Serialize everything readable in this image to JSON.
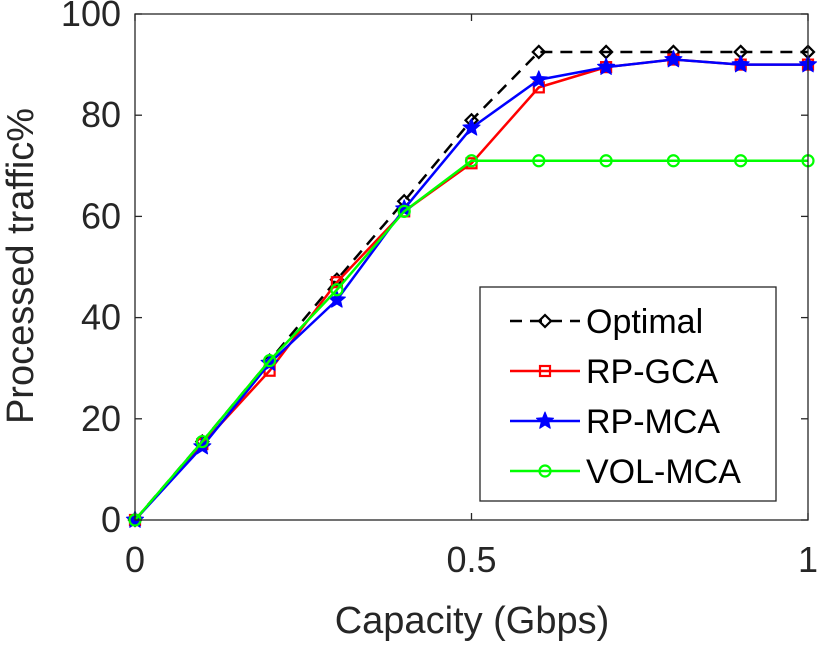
{
  "chart_data": {
    "type": "line",
    "title": "",
    "xlabel": "Capacity (Gbps)",
    "ylabel": "Processed traffic%",
    "xlim": [
      0,
      1
    ],
    "ylim": [
      0,
      100
    ],
    "grid": false,
    "legend_position": "bottom-right",
    "x_ticks": [
      {
        "value": 0,
        "label": "0"
      },
      {
        "value": 0.5,
        "label": "0.5"
      },
      {
        "value": 1,
        "label": "1"
      }
    ],
    "y_ticks": [
      {
        "value": 0,
        "label": "0"
      },
      {
        "value": 20,
        "label": "20"
      },
      {
        "value": 40,
        "label": "40"
      },
      {
        "value": 60,
        "label": "60"
      },
      {
        "value": 80,
        "label": "80"
      },
      {
        "value": 100,
        "label": "100"
      }
    ],
    "x": [
      0,
      0.1,
      0.2,
      0.3,
      0.4,
      0.5,
      0.6,
      0.7,
      0.8,
      0.9,
      1.0
    ],
    "series": [
      {
        "name": "Optimal",
        "color": "#000000",
        "line_style": "dashed",
        "marker": "diamond",
        "values": [
          0,
          15.5,
          31.5,
          47.5,
          63,
          79,
          92.5,
          92.5,
          92.5,
          92.5,
          92.5
        ]
      },
      {
        "name": "RP-GCA",
        "color": "#ff0000",
        "line_style": "solid",
        "marker": "square",
        "values": [
          0,
          15,
          29.5,
          47,
          61,
          70.5,
          85.5,
          89.5,
          91,
          90,
          90
        ]
      },
      {
        "name": "RP-MCA",
        "color": "#0000ff",
        "line_style": "solid",
        "marker": "star",
        "values": [
          0,
          14.5,
          31,
          43.5,
          61.5,
          77.5,
          87,
          89.5,
          91,
          90,
          90
        ]
      },
      {
        "name": "VOL-MCA",
        "color": "#00ff00",
        "line_style": "solid",
        "marker": "circle",
        "values": [
          0,
          15.5,
          31.5,
          45.5,
          61,
          71,
          71,
          71,
          71,
          71,
          71
        ]
      }
    ]
  }
}
